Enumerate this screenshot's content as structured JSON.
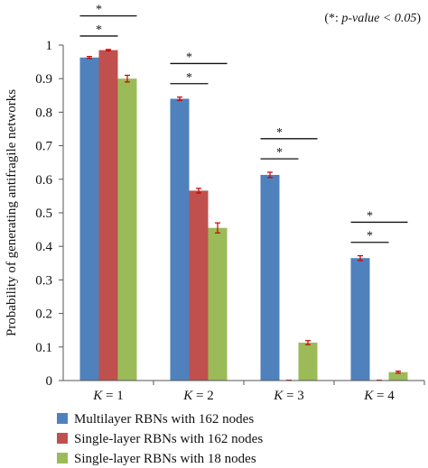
{
  "chart_data": {
    "type": "bar",
    "ylabel": "Probability of generating antifragile networks",
    "annotation": {
      "prefix": "(*: ",
      "italic": "p-value < 0.05",
      "suffix": ")"
    },
    "significance_marker": "*",
    "categories": [
      {
        "pre": "K",
        "post": " = 1"
      },
      {
        "pre": "K",
        "post": " = 2"
      },
      {
        "pre": "K",
        "post": " = 3"
      },
      {
        "pre": "K",
        "post": " = 4"
      }
    ],
    "ylim": [
      0,
      1
    ],
    "yticks": [
      "0",
      "0.1",
      "0.2",
      "0.3",
      "0.4",
      "0.5",
      "0.6",
      "0.7",
      "0.8",
      "0.9",
      "1"
    ],
    "series": [
      {
        "name": "Multilayer RBNs with 162 nodes",
        "color": "#4f81bd",
        "values": [
          0.963,
          0.84,
          0.613,
          0.365
        ],
        "errors": [
          0.003,
          0.005,
          0.008,
          0.007
        ]
      },
      {
        "name": "Single-layer RBNs with 162 nodes",
        "color": "#c0504d",
        "values": [
          0.985,
          0.566,
          0.001,
          0.001
        ],
        "errors": [
          0.002,
          0.007,
          0.0,
          0.0
        ]
      },
      {
        "name": "Single-layer RBNs with 18 nodes",
        "color": "#9bbb59",
        "values": [
          0.9,
          0.455,
          0.113,
          0.025
        ],
        "errors": [
          0.01,
          0.015,
          0.006,
          0.003
        ]
      }
    ],
    "error_bar_color": "#cc0000",
    "significance": [
      {
        "category": 0,
        "from": 0,
        "to": 1
      },
      {
        "category": 0,
        "from": 0,
        "to": 2
      },
      {
        "category": 1,
        "from": 0,
        "to": 1
      },
      {
        "category": 1,
        "from": 0,
        "to": 2
      },
      {
        "category": 2,
        "from": 0,
        "to": 1
      },
      {
        "category": 2,
        "from": 0,
        "to": 2
      },
      {
        "category": 3,
        "from": 0,
        "to": 1
      },
      {
        "category": 3,
        "from": 0,
        "to": 2
      }
    ],
    "significance_levels": [
      0.04,
      0.1
    ],
    "legend_position": "bottom-left",
    "grid": false
  }
}
